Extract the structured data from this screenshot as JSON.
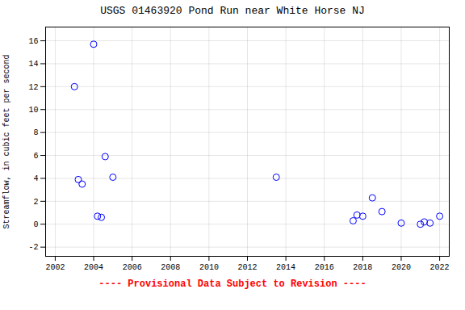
{
  "chart_data": {
    "type": "scatter",
    "title": "USGS 01463920 Pond Run near White Horse NJ",
    "ylabel": "Streamflow, in cubic feet per second",
    "xlabel": "---- Provisional Data Subject to Revision ----",
    "x": [
      2003.0,
      2003.2,
      2003.4,
      2004.0,
      2004.2,
      2004.4,
      2004.6,
      2005.0,
      2013.5,
      2017.5,
      2017.7,
      2018.0,
      2018.5,
      2019.0,
      2020.0,
      2021.0,
      2021.2,
      2021.5,
      2022.0
    ],
    "values": [
      12.0,
      3.9,
      3.5,
      15.7,
      0.7,
      0.6,
      5.9,
      4.1,
      4.1,
      0.3,
      0.8,
      0.7,
      2.3,
      1.1,
      0.1,
      0.0,
      0.2,
      0.1,
      0.7
    ],
    "color": "blue",
    "marker": "circle",
    "xlim": [
      2001.5,
      2022.5
    ],
    "ylim": [
      -2.8,
      17.2
    ],
    "xticks": [
      2002,
      2004,
      2006,
      2008,
      2010,
      2012,
      2014,
      2016,
      2018,
      2020,
      2022
    ],
    "yticks": [
      -2,
      0,
      2,
      4,
      6,
      8,
      10,
      12,
      14,
      16
    ],
    "grid": true
  }
}
